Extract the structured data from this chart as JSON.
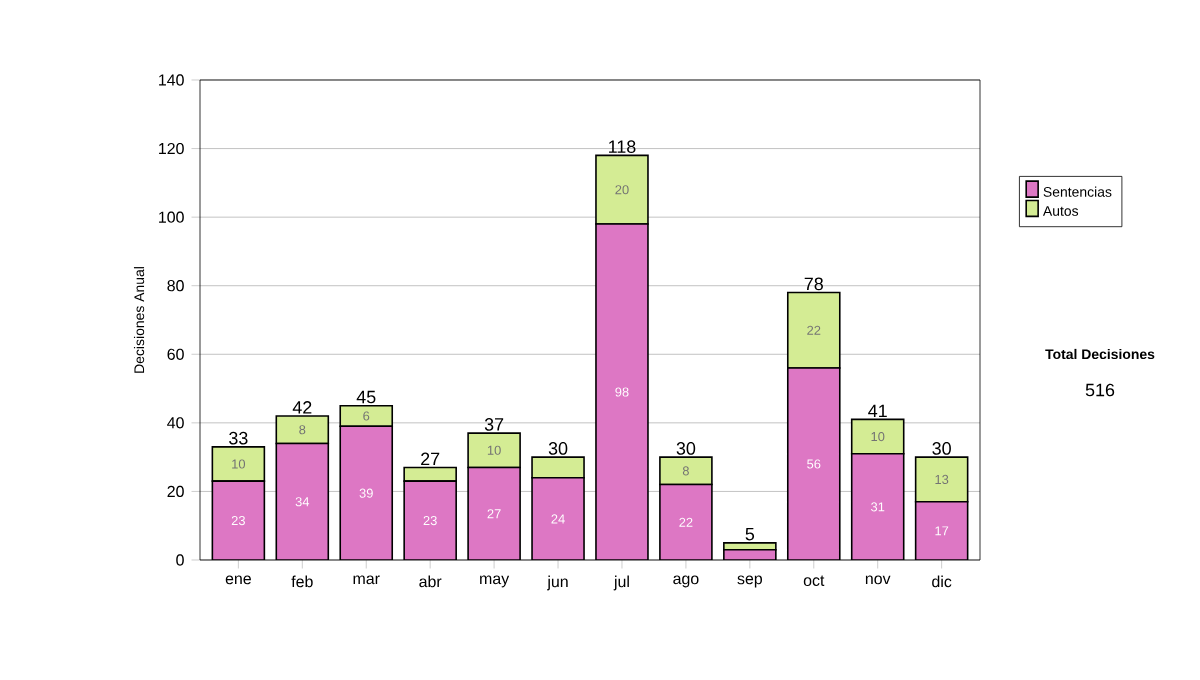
{
  "chart_data": {
    "type": "bar",
    "stacked": true,
    "ylabel": "Decisiones Anual",
    "categories": [
      "ene",
      "feb",
      "mar",
      "abr",
      "may",
      "jun",
      "jul",
      "ago",
      "sep",
      "oct",
      "nov",
      "dic"
    ],
    "series": [
      {
        "name": "Sentencias",
        "color": "#dd77c4",
        "values": [
          23,
          34,
          39,
          23,
          27,
          24,
          98,
          22,
          3,
          56,
          31,
          17
        ],
        "value_labels": [
          "23",
          "34",
          "39",
          "23",
          "27",
          "24",
          "98",
          "22",
          null,
          "56",
          "31",
          "17"
        ]
      },
      {
        "name": "Autos",
        "color": "#d4ec94",
        "values": [
          10,
          8,
          6,
          4,
          10,
          6,
          20,
          8,
          2,
          22,
          10,
          13
        ],
        "value_labels": [
          "10",
          "8",
          "6",
          null,
          "10",
          null,
          "20",
          "8",
          null,
          "22",
          "10",
          "13"
        ]
      }
    ],
    "totals": [
      "33",
      "42",
      "45",
      "27",
      "37",
      "30",
      "118",
      "30",
      "5",
      "78",
      "41",
      "30"
    ],
    "ylim": [
      0,
      140
    ],
    "yticks": [
      0,
      20,
      40,
      60,
      80,
      100,
      120,
      140
    ],
    "grid": "y",
    "legend": "right",
    "annotations": [
      "Total Decisiones",
      "516"
    ]
  }
}
